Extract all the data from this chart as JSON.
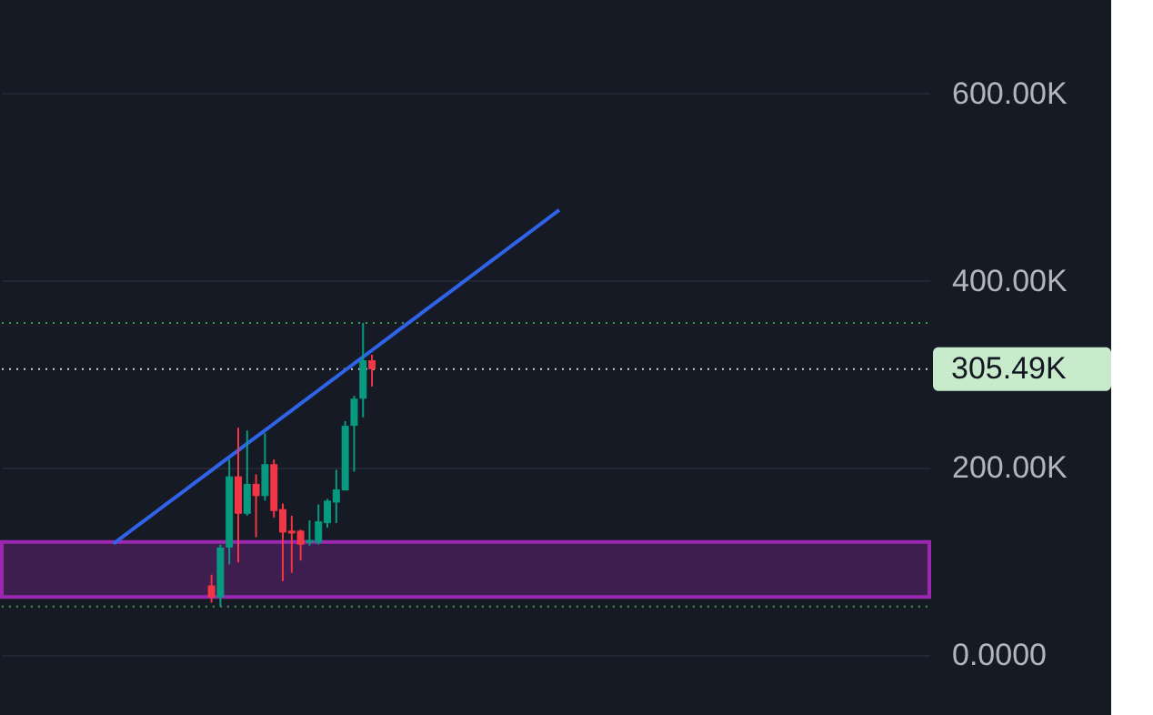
{
  "chart_data": {
    "type": "candlestick",
    "categories": [
      null,
      null,
      null,
      null,
      null,
      null,
      null,
      null,
      null,
      null,
      null,
      null,
      null,
      null,
      null,
      null,
      null,
      null,
      null,
      null,
      null,
      null,
      null,
      null,
      null,
      null,
      null,
      null,
      null,
      null,
      null,
      null,
      null,
      null,
      null,
      null,
      null,
      null,
      null,
      null,
      null,
      null,
      null,
      null,
      null,
      null,
      null,
      null,
      null,
      null,
      null,
      null,
      null,
      null,
      null,
      null,
      null,
      null,
      null,
      null,
      null,
      null,
      null,
      null,
      null,
      null,
      null,
      null,
      null,
      null,
      null,
      null,
      null,
      null,
      null,
      null,
      null,
      null,
      null,
      null,
      null,
      null,
      null,
      null,
      null,
      null,
      null,
      null,
      null,
      null,
      null,
      null,
      null,
      null,
      null,
      null,
      null,
      null,
      null,
      null,
      null,
      null
    ],
    "ohlc": [
      null,
      null,
      null,
      null,
      null,
      null,
      null,
      null,
      null,
      null,
      null,
      null,
      null,
      null,
      null,
      null,
      null,
      null,
      null,
      null,
      null,
      null,
      [
        74.5,
        86,
        56,
        61.5
      ],
      [
        61.5,
        118,
        52,
        115
      ],
      [
        115,
        209,
        97,
        191
      ],
      [
        191,
        243,
        99,
        151
      ],
      [
        151,
        240,
        149,
        183
      ],
      [
        183,
        193,
        126,
        170
      ],
      [
        170,
        237,
        165,
        204
      ],
      [
        204,
        209,
        147,
        154
      ],
      [
        156,
        162,
        79,
        131
      ],
      [
        133,
        149,
        88,
        130
      ],
      [
        133,
        134,
        101,
        118
      ],
      [
        120,
        144,
        117,
        123
      ],
      [
        120,
        161,
        118,
        143
      ],
      [
        141,
        167,
        136,
        165
      ],
      [
        163,
        198,
        141,
        177
      ],
      [
        176,
        250,
        176,
        245
      ],
      [
        245,
        277,
        196,
        274
      ],
      [
        274,
        355,
        254,
        315
      ],
      [
        315,
        321,
        287,
        305.49
      ],
      null,
      null,
      null,
      null,
      null,
      null,
      null,
      null,
      null,
      null,
      null,
      null,
      null,
      null,
      null,
      null,
      null,
      null,
      null,
      null,
      null,
      null,
      null,
      null,
      null,
      null,
      null,
      null,
      null,
      null,
      null,
      null,
      null,
      null,
      null,
      null,
      null,
      null,
      null,
      null,
      null,
      null,
      null,
      null,
      null,
      null,
      null,
      null,
      null,
      null,
      null,
      null,
      null,
      null,
      null,
      null,
      null,
      null,
      null,
      null,
      null
    ],
    "colors": [
      null,
      null,
      null,
      null,
      null,
      null,
      null,
      null,
      null,
      null,
      null,
      null,
      null,
      null,
      null,
      null,
      null,
      null,
      null,
      null,
      null,
      null,
      "#f23645",
      "#089981",
      "#089981",
      "#f23645",
      "#089981",
      "#f23645",
      "#089981",
      "#f23645",
      "#f23645",
      "#f23645",
      "#f23645",
      "#089981",
      "#089981",
      "#089981",
      "#089981",
      "#089981",
      "#089981",
      "#089981",
      "#f23645",
      null,
      null,
      null,
      null,
      null,
      null,
      null,
      null,
      null,
      null,
      null,
      null,
      null,
      null,
      null,
      null,
      null,
      null,
      null,
      null,
      null,
      null,
      null,
      null,
      null,
      null,
      null,
      null,
      null,
      null,
      null,
      null,
      null,
      null,
      null,
      null,
      null,
      null,
      null,
      null,
      null,
      null,
      null,
      null,
      null,
      null,
      null,
      null,
      null,
      null,
      null,
      null,
      null,
      null,
      null,
      null,
      null,
      null,
      null,
      null,
      null
    ],
    "series": [
      {
        "type": "line",
        "color": "#2f63e8",
        "values": [
          null,
          null,
          null,
          null,
          null,
          null,
          null,
          null,
          null,
          null,
          null,
          119.0,
          126.1,
          133.3,
          140.4,
          147.5,
          154.7,
          161.8,
          168.9,
          176.0,
          183.2,
          190.3,
          197.4,
          204.6,
          211.7,
          218.8,
          226.0,
          233.1,
          240.2,
          247.3,
          254.5,
          261.6,
          268.7,
          275.9,
          283.0,
          290.1,
          297.3,
          304.4,
          311.5,
          318.6,
          325.8,
          332.9,
          340.0,
          347.2,
          354.3,
          361.4,
          368.6,
          375.7,
          382.8,
          389.9,
          397.1,
          404.2,
          411.3,
          418.5,
          425.6,
          432.7,
          439.9,
          447.0,
          454.1,
          461.2,
          468.4,
          475.5,
          null,
          null,
          null,
          null,
          null,
          null,
          null,
          null,
          null,
          null,
          null,
          null,
          null,
          null,
          null,
          null,
          null,
          null,
          null,
          null,
          null,
          null,
          null,
          null,
          null,
          null,
          null,
          null,
          null,
          null,
          null,
          null,
          null,
          null,
          null,
          null,
          null,
          null,
          null,
          null
        ]
      }
    ],
    "ylim": [
      -64,
      700
    ],
    "yticks": [
      {
        "value": 0,
        "label": "0.0000"
      },
      {
        "value": 200,
        "label": "200.00K"
      },
      {
        "value": 400,
        "label": "400.00K"
      },
      {
        "value": 600,
        "label": "600.00K"
      }
    ],
    "tick_labels": "y",
    "ref_lines": [
      {
        "axis": "y",
        "value": 355,
        "color": "#3d9a4a",
        "line_style": "dotted"
      },
      {
        "axis": "y",
        "value": 52,
        "color": "#3d9a4a",
        "line_style": "dotted"
      },
      {
        "axis": "y",
        "value": 305.49,
        "label": "305.49K",
        "color": "#d1d4dc",
        "line_style": "dotted"
      }
    ],
    "bands": [
      {
        "axis": "y",
        "from": 62,
        "to": 121,
        "color": "#9c27b0"
      }
    ],
    "grid": "y"
  }
}
